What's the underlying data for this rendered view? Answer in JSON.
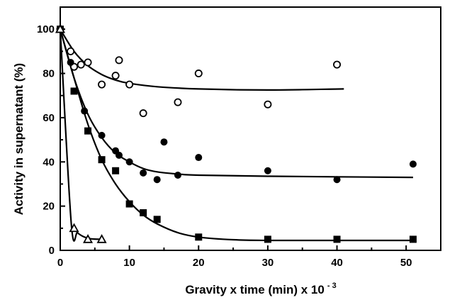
{
  "chart_data": {
    "type": "scatter",
    "title": "",
    "xlabel_main": "Gravity x time (min) x 10",
    "xlabel_exponent": "- 3",
    "ylabel": "Activity in supernatant (%)",
    "xlim": [
      0,
      55
    ],
    "ylim": [
      0,
      110
    ],
    "x_ticks": [
      "0",
      "10",
      "20",
      "30",
      "40",
      "50"
    ],
    "x_tick_values": [
      0,
      10,
      20,
      30,
      40,
      50
    ],
    "y_ticks": [
      "0",
      "20",
      "40",
      "60",
      "80",
      "100"
    ],
    "y_tick_values": [
      0,
      20,
      40,
      60,
      80,
      100
    ],
    "grid": false,
    "legend": "none",
    "series": [
      {
        "marker": "open-circle",
        "points": [
          [
            0,
            100
          ],
          [
            1.5,
            90
          ],
          [
            2,
            83
          ],
          [
            3,
            84
          ],
          [
            4,
            85
          ],
          [
            6,
            75
          ],
          [
            8,
            79
          ],
          [
            8.5,
            86
          ],
          [
            10,
            75
          ],
          [
            12,
            62
          ],
          [
            17,
            67
          ],
          [
            20,
            80
          ],
          [
            30,
            66
          ],
          [
            40,
            84
          ]
        ],
        "fit": [
          [
            0,
            100
          ],
          [
            2,
            90
          ],
          [
            4,
            83.5
          ],
          [
            6,
            79.5
          ],
          [
            8,
            77
          ],
          [
            10,
            75.5
          ],
          [
            14,
            74
          ],
          [
            20,
            73
          ],
          [
            30,
            72.5
          ],
          [
            41,
            73
          ]
        ]
      },
      {
        "marker": "filled-circle",
        "points": [
          [
            0,
            100
          ],
          [
            1.5,
            85
          ],
          [
            3.5,
            63
          ],
          [
            6,
            52
          ],
          [
            8,
            45
          ],
          [
            8.5,
            43
          ],
          [
            10,
            40
          ],
          [
            12,
            35
          ],
          [
            14,
            32
          ],
          [
            15,
            49
          ],
          [
            17,
            34
          ],
          [
            20,
            42
          ],
          [
            30,
            36
          ],
          [
            40,
            32
          ],
          [
            51,
            39
          ]
        ],
        "fit": [
          [
            0,
            100
          ],
          [
            2,
            78
          ],
          [
            4,
            61.5
          ],
          [
            6,
            51
          ],
          [
            8,
            44
          ],
          [
            10,
            40
          ],
          [
            12,
            37
          ],
          [
            14,
            35.5
          ],
          [
            17,
            34.5
          ],
          [
            20,
            34
          ],
          [
            30,
            33.5
          ],
          [
            51,
            33
          ]
        ]
      },
      {
        "marker": "filled-square",
        "points": [
          [
            0,
            100
          ],
          [
            2,
            72
          ],
          [
            4,
            54
          ],
          [
            6,
            41
          ],
          [
            8,
            36
          ],
          [
            10,
            21
          ],
          [
            12,
            17
          ],
          [
            14,
            14
          ],
          [
            20,
            6
          ],
          [
            30,
            5
          ],
          [
            40,
            5
          ],
          [
            51,
            5
          ]
        ],
        "fit": [
          [
            0,
            100
          ],
          [
            2,
            78
          ],
          [
            4,
            57
          ],
          [
            6,
            41
          ],
          [
            8,
            30
          ],
          [
            10,
            22
          ],
          [
            12,
            16
          ],
          [
            14,
            12
          ],
          [
            17,
            8
          ],
          [
            20,
            6
          ],
          [
            25,
            4.8
          ],
          [
            30,
            4.5
          ],
          [
            40,
            4.5
          ],
          [
            51,
            4.5
          ]
        ]
      },
      {
        "marker": "open-triangle",
        "points": [
          [
            0,
            100
          ],
          [
            2,
            10
          ],
          [
            4,
            5
          ],
          [
            6,
            5
          ]
        ],
        "fit": [
          [
            0,
            100
          ],
          [
            1.6,
            12
          ],
          [
            2.5,
            8
          ],
          [
            3.5,
            6
          ],
          [
            4.5,
            5.2
          ],
          [
            6,
            5
          ]
        ]
      }
    ]
  }
}
